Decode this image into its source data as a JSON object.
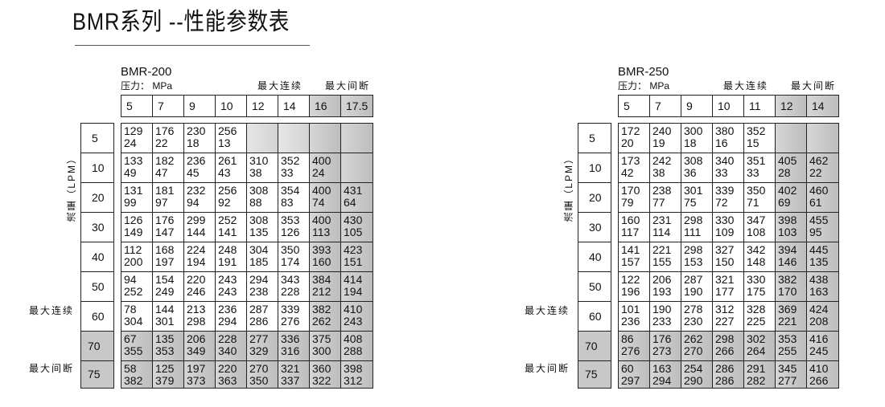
{
  "title": "BMR系列 --性能参数表",
  "flow_label": "流量（LPM）",
  "max_continuous": "最大连续",
  "max_intermittent": "最大间断",
  "tables": [
    {
      "model": "BMR-200",
      "unit": "压力： MPa",
      "pressures": [
        "5",
        "7",
        "9",
        "10",
        "12",
        "14",
        "16",
        "17.5"
      ],
      "flows": [
        "5",
        "10",
        "20",
        "30",
        "40",
        "50",
        "60",
        "70",
        "75"
      ],
      "cells": [
        [
          [
            "129",
            "24"
          ],
          [
            "176",
            "22"
          ],
          [
            "230",
            "18"
          ],
          [
            "256",
            "13"
          ],
          null,
          null,
          null,
          null
        ],
        [
          [
            "133",
            "49"
          ],
          [
            "182",
            "47"
          ],
          [
            "236",
            "45"
          ],
          [
            "261",
            "43"
          ],
          [
            "310",
            "38"
          ],
          [
            "352",
            "33"
          ],
          [
            "400",
            "24"
          ],
          null
        ],
        [
          [
            "131",
            "99"
          ],
          [
            "181",
            "97"
          ],
          [
            "232",
            "94"
          ],
          [
            "256",
            "92"
          ],
          [
            "308",
            "88"
          ],
          [
            "354",
            "83"
          ],
          [
            "400",
            "74"
          ],
          [
            "431",
            "64"
          ]
        ],
        [
          [
            "126",
            "149"
          ],
          [
            "176",
            "147"
          ],
          [
            "299",
            "144"
          ],
          [
            "252",
            "141"
          ],
          [
            "308",
            "135"
          ],
          [
            "353",
            "126"
          ],
          [
            "400",
            "113"
          ],
          [
            "430",
            "105"
          ]
        ],
        [
          [
            "112",
            "200"
          ],
          [
            "168",
            "197"
          ],
          [
            "224",
            "194"
          ],
          [
            "248",
            "191"
          ],
          [
            "304",
            "185"
          ],
          [
            "350",
            "174"
          ],
          [
            "393",
            "160"
          ],
          [
            "423",
            "151"
          ]
        ],
        [
          [
            "94",
            "252"
          ],
          [
            "154",
            "249"
          ],
          [
            "220",
            "246"
          ],
          [
            "243",
            "243"
          ],
          [
            "294",
            "238"
          ],
          [
            "343",
            "228"
          ],
          [
            "384",
            "212"
          ],
          [
            "414",
            "194"
          ]
        ],
        [
          [
            "78",
            "304"
          ],
          [
            "144",
            "301"
          ],
          [
            "213",
            "298"
          ],
          [
            "236",
            "294"
          ],
          [
            "287",
            "286"
          ],
          [
            "339",
            "276"
          ],
          [
            "382",
            "262"
          ],
          [
            "410",
            "243"
          ]
        ],
        [
          [
            "67",
            "355"
          ],
          [
            "135",
            "353"
          ],
          [
            "206",
            "349"
          ],
          [
            "228",
            "340"
          ],
          [
            "277",
            "329"
          ],
          [
            "336",
            "316"
          ],
          [
            "375",
            "300"
          ],
          [
            "408",
            "288"
          ]
        ],
        [
          [
            "58",
            "382"
          ],
          [
            "125",
            "379"
          ],
          [
            "197",
            "373"
          ],
          [
            "220",
            "363"
          ],
          [
            "270",
            "350"
          ],
          [
            "321",
            "337"
          ],
          [
            "360",
            "322"
          ],
          [
            "398",
            "312"
          ]
        ]
      ]
    },
    {
      "model": "BMR-250",
      "unit": "压力： MPa",
      "pressures": [
        "5",
        "7",
        "9",
        "10",
        "11",
        "12",
        "14"
      ],
      "flows": [
        "5",
        "10",
        "20",
        "30",
        "40",
        "50",
        "60",
        "70",
        "75"
      ],
      "cells": [
        [
          [
            "172",
            "20"
          ],
          [
            "240",
            "19"
          ],
          [
            "300",
            "18"
          ],
          [
            "380",
            "16"
          ],
          [
            "352",
            "15"
          ],
          null,
          null
        ],
        [
          [
            "173",
            "42"
          ],
          [
            "242",
            "38"
          ],
          [
            "308",
            "36"
          ],
          [
            "340",
            "33"
          ],
          [
            "351",
            "33"
          ],
          [
            "405",
            "28"
          ],
          [
            "462",
            "22"
          ]
        ],
        [
          [
            "170",
            "79"
          ],
          [
            "238",
            "77"
          ],
          [
            "301",
            "75"
          ],
          [
            "339",
            "72"
          ],
          [
            "350",
            "71"
          ],
          [
            "402",
            "69"
          ],
          [
            "460",
            "61"
          ]
        ],
        [
          [
            "160",
            "117"
          ],
          [
            "231",
            "114"
          ],
          [
            "298",
            "111"
          ],
          [
            "330",
            "109"
          ],
          [
            "347",
            "108"
          ],
          [
            "398",
            "103"
          ],
          [
            "455",
            "95"
          ]
        ],
        [
          [
            "141",
            "157"
          ],
          [
            "221",
            "155"
          ],
          [
            "298",
            "153"
          ],
          [
            "327",
            "150"
          ],
          [
            "342",
            "148"
          ],
          [
            "394",
            "146"
          ],
          [
            "445",
            "135"
          ]
        ],
        [
          [
            "122",
            "196"
          ],
          [
            "206",
            "193"
          ],
          [
            "287",
            "190"
          ],
          [
            "321",
            "177"
          ],
          [
            "330",
            "175"
          ],
          [
            "382",
            "170"
          ],
          [
            "438",
            "163"
          ]
        ],
        [
          [
            "101",
            "236"
          ],
          [
            "190",
            "233"
          ],
          [
            "278",
            "230"
          ],
          [
            "312",
            "227"
          ],
          [
            "328",
            "225"
          ],
          [
            "369",
            "221"
          ],
          [
            "424",
            "208"
          ]
        ],
        [
          [
            "86",
            "276"
          ],
          [
            "176",
            "273"
          ],
          [
            "262",
            "270"
          ],
          [
            "298",
            "266"
          ],
          [
            "302",
            "264"
          ],
          [
            "353",
            "255"
          ],
          [
            "416",
            "245"
          ]
        ],
        [
          [
            "60",
            "297"
          ],
          [
            "163",
            "294"
          ],
          [
            "254",
            "290"
          ],
          [
            "286",
            "286"
          ],
          [
            "291",
            "282"
          ],
          [
            "345",
            "277"
          ],
          [
            "410",
            "266"
          ]
        ]
      ]
    }
  ]
}
